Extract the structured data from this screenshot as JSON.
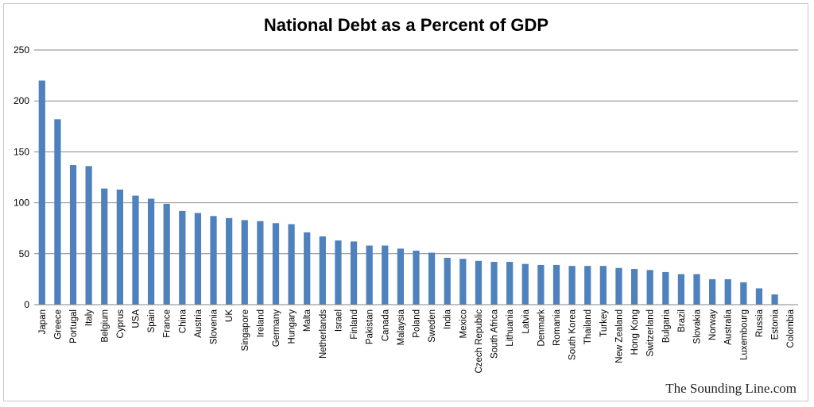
{
  "chart_data": {
    "type": "bar",
    "title": "National Debt as a Percent of GDP",
    "xlabel": "",
    "ylabel": "",
    "ylim": [
      0,
      250
    ],
    "yticks": [
      0,
      50,
      100,
      150,
      200,
      250
    ],
    "grid": true,
    "legend": "none",
    "bar_color": "#4f81bd",
    "categories": [
      "Japan",
      "Greece",
      "Portugal",
      "Italy",
      "Belgium",
      "Cyprus",
      "USA",
      "Spain",
      "France",
      "China",
      "Austria",
      "Slovenia",
      "UK",
      "Singapore",
      "Ireland",
      "Germany",
      "Hungary",
      "Malta",
      "Netherlands",
      "Israel",
      "Finland",
      "Pakistan",
      "Canada",
      "Malaysia",
      "Poland",
      "Sweden",
      "India",
      "Mexico",
      "Czech Republic",
      "South Africa",
      "Lithuania",
      "Latvia",
      "Denmark",
      "Romania",
      "South Korea",
      "Thailand",
      "Turkey",
      "New Zealand",
      "Hong Kong",
      "Switzerland",
      "Bulgaria",
      "Brazil",
      "Slovakia",
      "Norway",
      "Australia",
      "Luxembourg",
      "Russia",
      "Estonia",
      "Colombia"
    ],
    "values": [
      220,
      182,
      137,
      136,
      114,
      113,
      107,
      104,
      99,
      92,
      90,
      87,
      85,
      83,
      82,
      80,
      79,
      71,
      67,
      63,
      62,
      58,
      58,
      55,
      53,
      51,
      46,
      45,
      43,
      42,
      42,
      40,
      39,
      39,
      38,
      38,
      38,
      36,
      35,
      34,
      32,
      30,
      30,
      25,
      25,
      22,
      16,
      10,
      0
    ]
  },
  "credit": "The Sounding Line.com"
}
